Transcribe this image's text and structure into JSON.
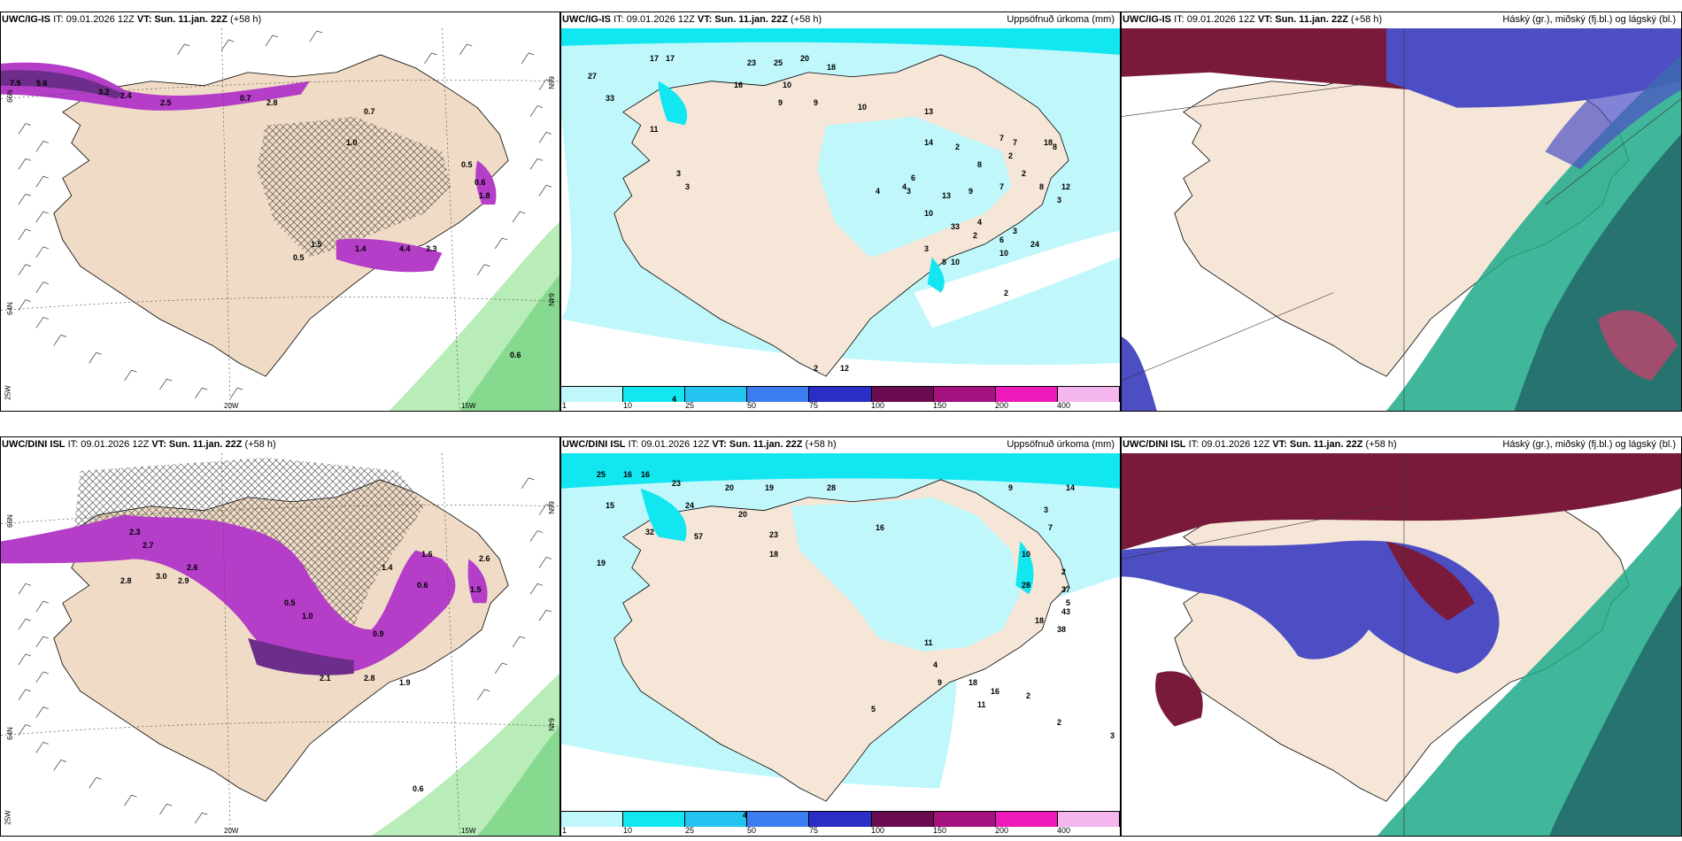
{
  "rows": [
    {
      "model": "UWC/IG-IS",
      "wind_panel": {
        "header_it": "IT: 09.01.2026 12Z",
        "header_vt_label": "VT:",
        "header_vt": "Sun. 11.jan. 22Z",
        "header_lead": "(+58 h)",
        "axis_labels": {
          "left_top": "66N",
          "left_mid": "64N",
          "left_bot": "25W",
          "bottom_a": "20W",
          "bottom_b": "15W",
          "right_top": "66N",
          "right_mid": "64N"
        },
        "values": [
          "7.5",
          "5.6",
          "3.2",
          "2.4",
          "2.5",
          "0.7",
          "2.8",
          "0.7",
          "1.0",
          "0.5",
          "0.6",
          "1.5",
          "1.4",
          "4.4",
          "3.3",
          "0.5",
          "1.8",
          "0.6"
        ]
      },
      "precip_panel": {
        "header_it": "IT: 09.01.2026 12Z",
        "header_vt_label": "VT:",
        "header_vt": "Sun. 11.jan. 22Z",
        "header_lead": "(+58 h)",
        "title": "Uppsöfnuð úrkoma (mm)",
        "values": [
          "17",
          "17",
          "23",
          "25",
          "20",
          "18",
          "27",
          "16",
          "10",
          "9",
          "9",
          "33",
          "11",
          "13",
          "14",
          "3",
          "2",
          "8",
          "10",
          "4",
          "13",
          "18",
          "7",
          "7",
          "2",
          "2",
          "6",
          "3",
          "3",
          "4",
          "9",
          "10",
          "7",
          "8",
          "12",
          "33",
          "3",
          "8",
          "2",
          "4",
          "6",
          "3",
          "10",
          "10",
          "8",
          "3",
          "24",
          "2",
          "12",
          "2",
          "4"
        ]
      },
      "cloud_panel": {
        "header_it": "IT: 09.01.2026 12Z",
        "header_vt_label": "VT:",
        "header_vt": "Sun. 11.jan. 22Z",
        "header_lead": "(+58 h)",
        "title": "Háský (gr.), miðský (fj.bl.) og lágský (bl.)"
      }
    },
    {
      "model": "UWC/DINI ISL",
      "wind_panel": {
        "header_it": "IT: 09.01.2026 12Z",
        "header_vt_label": "VT:",
        "header_vt": "Sun. 11.jan. 22Z",
        "header_lead": "(+58 h)",
        "axis_labels": {
          "left_top": "66N",
          "left_mid": "64N",
          "left_bot": "25W",
          "bottom_a": "20W",
          "bottom_b": "15W",
          "right_top": "66N",
          "right_mid": "64N"
        },
        "values": [
          "2.3",
          "2.7",
          "2.6",
          "3.0",
          "2.8",
          "2.9",
          "1.6",
          "1.4",
          "0.6",
          "0.5",
          "1.0",
          "0.9",
          "2.1",
          "2.8",
          "1.9",
          "1.5",
          "2.6",
          "0.6"
        ]
      },
      "precip_panel": {
        "header_it": "IT: 09.01.2026 12Z",
        "header_vt_label": "VT:",
        "header_vt": "Sun. 11.jan. 22Z",
        "header_lead": "(+58 h)",
        "title": "Uppsöfnuð úrkoma (mm)",
        "values": [
          "25",
          "16",
          "16",
          "23",
          "20",
          "19",
          "28",
          "15",
          "24",
          "20",
          "32",
          "57",
          "23",
          "18",
          "16",
          "19",
          "14",
          "3",
          "9",
          "11",
          "4",
          "10",
          "2",
          "7",
          "28",
          "37",
          "43",
          "38",
          "18",
          "5",
          "9",
          "18",
          "16",
          "11",
          "2",
          "2",
          "5",
          "3",
          "4"
        ]
      },
      "cloud_panel": {
        "header_it": "IT: 09.01.2026 12Z",
        "header_vt_label": "VT:",
        "header_vt": "Sun. 11.jan. 22Z",
        "header_lead": "(+58 h)",
        "title": "Háský (gr.), miðský (fj.bl.) og lágský (bl.)"
      }
    }
  ],
  "legend": {
    "ticks": [
      "1",
      "10",
      "25",
      "50",
      "75",
      "100",
      "150",
      "200",
      "400"
    ],
    "colors": [
      "#bff7fb",
      "#12e6f0",
      "#23c3f0",
      "#3c7ef0",
      "#2a2ec7",
      "#6b0b4f",
      "#a51280",
      "#ec1ab8",
      "#f5b6ee"
    ]
  },
  "colors": {
    "land": "#f5e6d8",
    "sea": "#ffffff",
    "precip_light": "#bff7fb",
    "precip_mid": "#12e6f0",
    "wind_purple": "#b43ec8",
    "green_band": "#9ee8a3",
    "cloud_high": "#7a1a3b",
    "cloud_mid": "#4d4ec4",
    "cloud_low": "#1ea98a"
  }
}
